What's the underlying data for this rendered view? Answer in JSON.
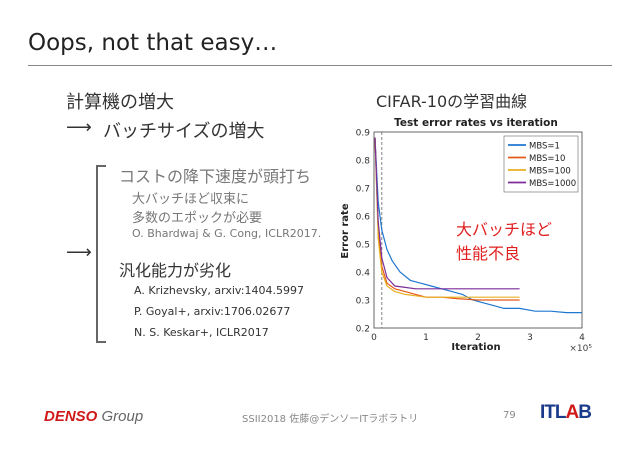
{
  "slide": {
    "title": "Oops, not that easy…",
    "heading_compute": "計算機の増大",
    "arrow": "⟶",
    "heading_batch": "バッチサイズの増大",
    "cost_heading": "コストの降下速度が頭打ち",
    "cost_sub1": "大バッチほど収束に",
    "cost_sub2": "多数のエポックが必要",
    "cost_ref": "O. Bhardwaj & G. Cong, ICLR2017.",
    "gen_heading": "汎化能力が劣化",
    "refs": [
      "A. Krizhevsky, arxiv:1404.5997",
      "P. Goyal+, arxiv:1706.02677",
      "N. S. Keskar+, ICLR2017"
    ],
    "chart_heading": "CIFAR-10の学習曲線",
    "annotation_line1": "大バッチほど",
    "annotation_line2": "性能不良"
  },
  "footer": {
    "logo_denso": "DENSO",
    "logo_group": "Group",
    "center": "SSII2018 佐藤@デンソーITラボラトリ",
    "page": "79",
    "itlab_it": "IT",
    "itlab_l": "L",
    "itlab_a": "A",
    "itlab_b": "B"
  },
  "chart_data": {
    "type": "line",
    "title": "Test error rates vs iteration",
    "xlabel": "Iteration",
    "ylabel": "Error rate",
    "x_multiplier": "×10⁵",
    "xlim": [
      0,
      4
    ],
    "ylim": [
      0.2,
      0.9
    ],
    "xticks": [
      "0",
      "1",
      "2",
      "3",
      "4"
    ],
    "yticks": [
      "0.2",
      "0.3",
      "0.4",
      "0.5",
      "0.6",
      "0.7",
      "0.8",
      "0.9"
    ],
    "legend_position": "top-right",
    "grid": true,
    "vline_x": 0.15,
    "series": [
      {
        "name": "MBS=1",
        "color": "#1f77d0",
        "x": [
          0.02,
          0.08,
          0.15,
          0.25,
          0.35,
          0.5,
          0.7,
          0.9,
          1.1,
          1.3,
          1.5,
          1.7,
          1.9,
          2.1,
          2.3,
          2.5,
          2.8,
          3.1,
          3.4,
          3.7,
          4.0
        ],
        "y": [
          0.88,
          0.65,
          0.55,
          0.48,
          0.44,
          0.4,
          0.37,
          0.36,
          0.35,
          0.34,
          0.33,
          0.32,
          0.3,
          0.29,
          0.28,
          0.27,
          0.27,
          0.26,
          0.26,
          0.255,
          0.255
        ]
      },
      {
        "name": "MBS=10",
        "color": "#e35a1a",
        "x": [
          0.02,
          0.08,
          0.15,
          0.25,
          0.4,
          0.6,
          0.8,
          1.0,
          1.3,
          1.6,
          2.0,
          2.4,
          2.8
        ],
        "y": [
          0.88,
          0.55,
          0.42,
          0.36,
          0.34,
          0.33,
          0.32,
          0.31,
          0.31,
          0.305,
          0.3,
          0.3,
          0.3
        ]
      },
      {
        "name": "MBS=100",
        "color": "#e8b020",
        "x": [
          0.02,
          0.08,
          0.15,
          0.25,
          0.4,
          0.6,
          0.8,
          1.0,
          1.3,
          1.6,
          2.0,
          2.4,
          2.8
        ],
        "y": [
          0.88,
          0.52,
          0.4,
          0.35,
          0.33,
          0.32,
          0.315,
          0.31,
          0.31,
          0.31,
          0.31,
          0.31,
          0.31
        ]
      },
      {
        "name": "MBS=1000",
        "color": "#7b2d9a",
        "x": [
          0.02,
          0.08,
          0.15,
          0.25,
          0.4,
          0.6,
          0.8,
          1.0,
          1.3,
          1.6,
          2.0,
          2.4,
          2.8
        ],
        "y": [
          0.88,
          0.58,
          0.45,
          0.38,
          0.35,
          0.345,
          0.34,
          0.34,
          0.34,
          0.34,
          0.34,
          0.34,
          0.34
        ]
      }
    ]
  }
}
